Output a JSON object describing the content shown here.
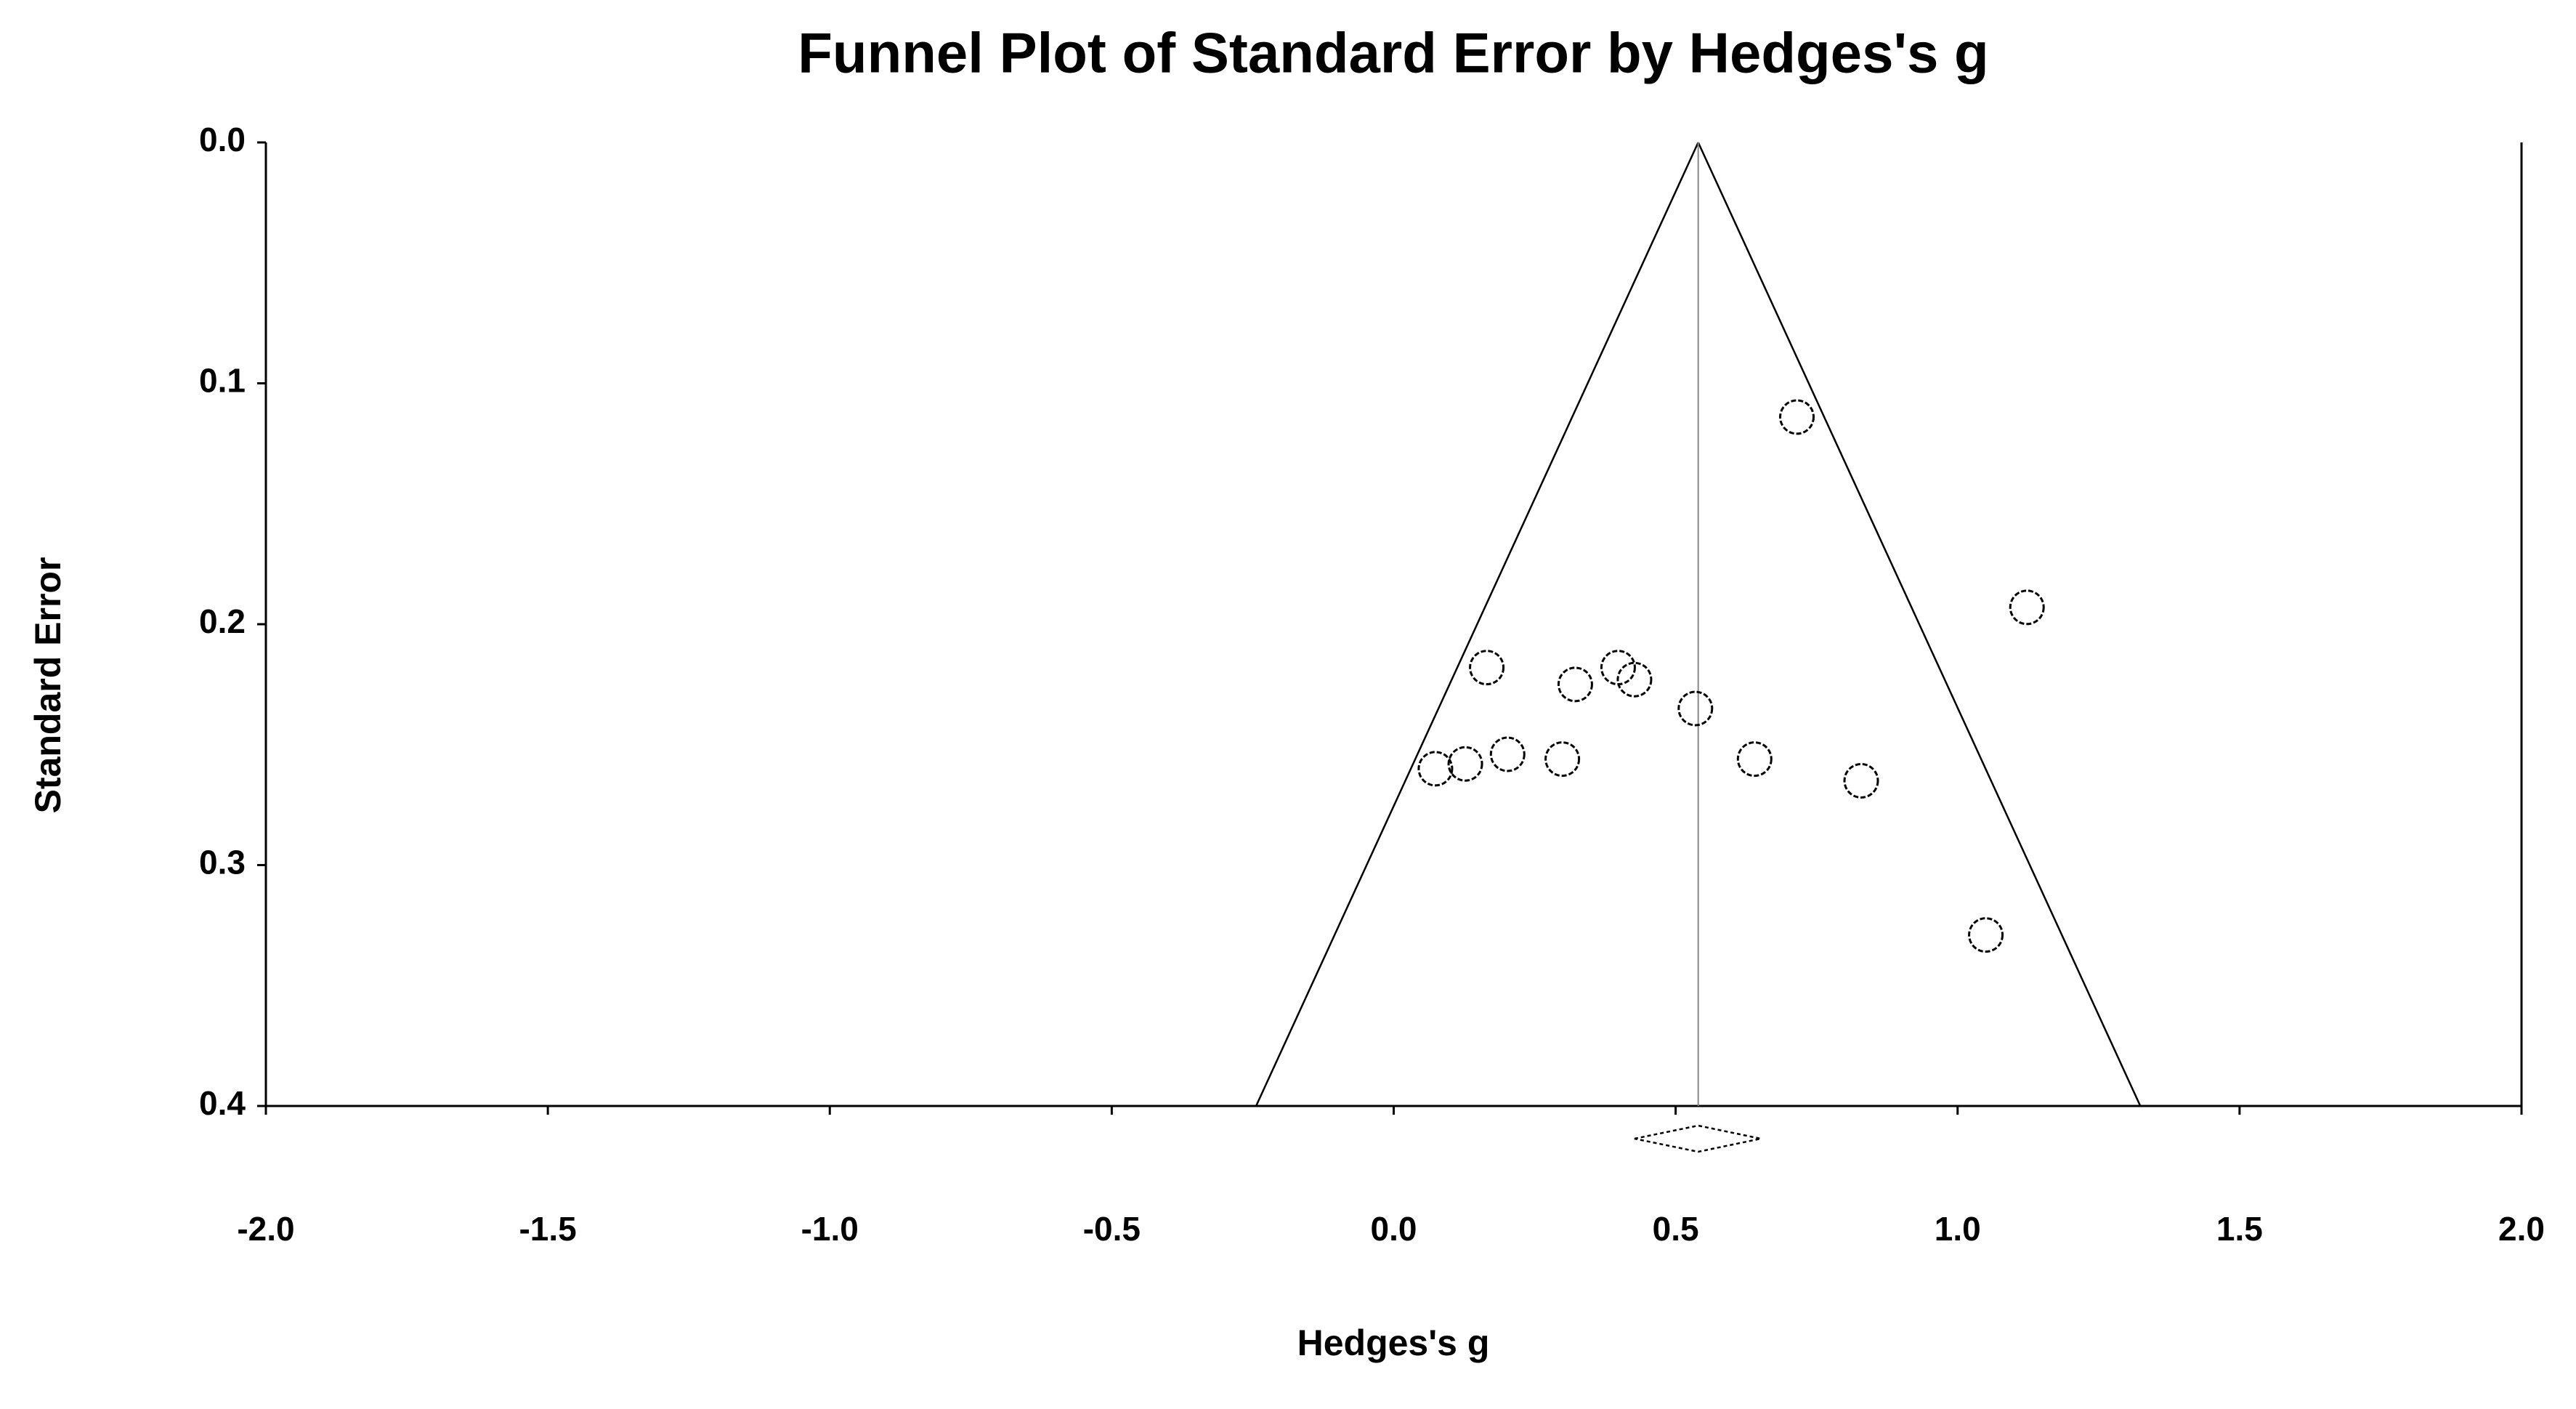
{
  "chart_data": {
    "type": "funnel-scatter",
    "title": "Funnel Plot of Standard Error by Hedges's g",
    "xlabel": "Hedges's g",
    "ylabel": "Standard Error",
    "x": [
      0.715,
      1.123,
      0.165,
      0.398,
      0.322,
      0.427,
      0.535,
      0.074,
      0.127,
      0.202,
      0.299,
      0.64,
      0.829,
      1.05
    ],
    "values": [
      0.114,
      0.193,
      0.218,
      0.218,
      0.225,
      0.223,
      0.235,
      0.26,
      0.258,
      0.254,
      0.256,
      0.256,
      0.265,
      0.329
    ],
    "summary": {
      "estimate": 0.54,
      "ci": [
        0.427,
        0.651
      ]
    },
    "funnel_z": 1.96,
    "xlim": [
      -2.0,
      2.0
    ],
    "xticks": [
      {
        "value": -2,
        "label": "-2.0"
      },
      -1.5,
      {
        "value": -1,
        "label": "-1.0"
      },
      -0.5,
      {
        "value": 0,
        "label": "0.0"
      },
      0.5,
      {
        "value": 1,
        "label": "1.0"
      },
      1.5,
      {
        "value": 2,
        "label": "2.0"
      }
    ],
    "ylim": [
      0,
      0.4
    ],
    "y_reversed": true,
    "yticks": [
      {
        "value": 0,
        "label": "0.0"
      },
      0.1,
      0.2,
      0.3,
      0.4
    ],
    "color": "#000000"
  }
}
